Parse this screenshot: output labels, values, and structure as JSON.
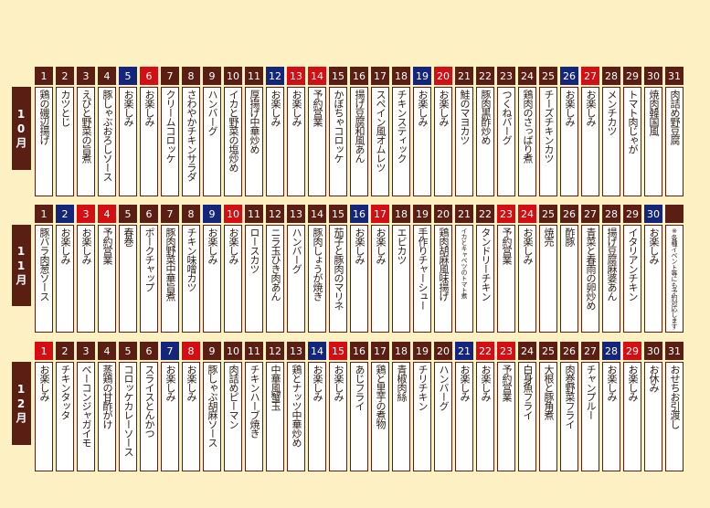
{
  "months": [
    {
      "label": "10月",
      "days": [
        {
          "n": "1",
          "t": "w"
        },
        {
          "n": "2",
          "t": "w"
        },
        {
          "n": "3",
          "t": "w"
        },
        {
          "n": "4",
          "t": "w"
        },
        {
          "n": "5",
          "t": "s"
        },
        {
          "n": "6",
          "t": "u"
        },
        {
          "n": "7",
          "t": "w"
        },
        {
          "n": "8",
          "t": "w"
        },
        {
          "n": "9",
          "t": "w"
        },
        {
          "n": "10",
          "t": "w"
        },
        {
          "n": "11",
          "t": "w"
        },
        {
          "n": "12",
          "t": "s"
        },
        {
          "n": "13",
          "t": "u"
        },
        {
          "n": "14",
          "t": "u"
        },
        {
          "n": "15",
          "t": "w"
        },
        {
          "n": "16",
          "t": "w"
        },
        {
          "n": "17",
          "t": "w"
        },
        {
          "n": "18",
          "t": "w"
        },
        {
          "n": "19",
          "t": "s"
        },
        {
          "n": "20",
          "t": "u"
        },
        {
          "n": "21",
          "t": "w"
        },
        {
          "n": "22",
          "t": "w"
        },
        {
          "n": "23",
          "t": "w"
        },
        {
          "n": "24",
          "t": "w"
        },
        {
          "n": "25",
          "t": "w"
        },
        {
          "n": "26",
          "t": "s"
        },
        {
          "n": "27",
          "t": "u"
        },
        {
          "n": "28",
          "t": "w"
        },
        {
          "n": "29",
          "t": "w"
        },
        {
          "n": "30",
          "t": "w"
        },
        {
          "n": "31",
          "t": "w"
        }
      ],
      "menus": [
        "鶏の磯辺揚げ",
        "カツとじ",
        "えびと野菜の旨煮",
        "豚しゃぶおろしソース",
        "お楽しみ",
        "お楽しみ",
        "クリームコロッケ",
        "さわやかチキンサラダ",
        "ハンバーグ",
        "イカと野菜の塩炒め",
        "厚揚げ中華炒め",
        "お楽しみ",
        "お楽しみ",
        "予約営業",
        "かぼちゃコロッケ",
        "揚げ豆腐和風あん",
        "スペイン風オムレツ",
        "チキンスティック",
        "お楽しみ",
        "お楽しみ",
        "鮭のマヨカツ",
        "豚肉黒酢炒め",
        "つくねバーグ",
        "鶏肉のさっぱり煮",
        "チーズチキンカツ",
        "お楽しみ",
        "お楽しみ",
        "メンチカツ",
        "トマト肉じゃが",
        "焼肉韓国風",
        "肉詰め野豆腐"
      ]
    },
    {
      "label": "11月",
      "days": [
        {
          "n": "1",
          "t": "w"
        },
        {
          "n": "2",
          "t": "s"
        },
        {
          "n": "3",
          "t": "u"
        },
        {
          "n": "4",
          "t": "u"
        },
        {
          "n": "5",
          "t": "w"
        },
        {
          "n": "6",
          "t": "w"
        },
        {
          "n": "7",
          "t": "w"
        },
        {
          "n": "8",
          "t": "w"
        },
        {
          "n": "9",
          "t": "s"
        },
        {
          "n": "10",
          "t": "u"
        },
        {
          "n": "11",
          "t": "w"
        },
        {
          "n": "12",
          "t": "w"
        },
        {
          "n": "13",
          "t": "w"
        },
        {
          "n": "14",
          "t": "w"
        },
        {
          "n": "15",
          "t": "w"
        },
        {
          "n": "16",
          "t": "s"
        },
        {
          "n": "17",
          "t": "u"
        },
        {
          "n": "18",
          "t": "w"
        },
        {
          "n": "19",
          "t": "w"
        },
        {
          "n": "20",
          "t": "w"
        },
        {
          "n": "21",
          "t": "w"
        },
        {
          "n": "22",
          "t": "w"
        },
        {
          "n": "23",
          "t": "u"
        },
        {
          "n": "24",
          "t": "u"
        },
        {
          "n": "25",
          "t": "w"
        },
        {
          "n": "26",
          "t": "w"
        },
        {
          "n": "27",
          "t": "w"
        },
        {
          "n": "28",
          "t": "w"
        },
        {
          "n": "29",
          "t": "w"
        },
        {
          "n": "30",
          "t": "s"
        },
        {
          "n": "",
          "t": "w"
        }
      ],
      "menus": [
        "豚バラ肉葱ソース",
        "お楽しみ",
        "お楽しみ",
        "予約営業",
        "春巻",
        "ポークチャップ",
        "豚肉野菜中華旨煮",
        "チキン味噌カツ",
        "お楽しみ",
        "お楽しみ",
        "ロースカツ",
        "ニラ玉ひき肉あん",
        "ハンバーグ",
        "豚肉しょうが焼き",
        "茄子と豚肉のマリネ",
        "お楽しみ",
        "お楽しみ",
        "エビカツ",
        "手作りチャーシュー",
        "鶏肉胡麻風味揚げ",
        "イカとキャベツのトマト煮",
        "タンドリーチキン",
        "予約営業",
        "お楽しみ",
        "焼売",
        "酢豚",
        "青菜と春雨の卵炒め",
        "揚げ豆腐麻婆あん",
        "イタリアンチキン",
        "お楽しみ",
        "※各種イベント等にも予約対応します"
      ]
    },
    {
      "label": "12月",
      "days": [
        {
          "n": "1",
          "t": "u"
        },
        {
          "n": "2",
          "t": "w"
        },
        {
          "n": "3",
          "t": "w"
        },
        {
          "n": "4",
          "t": "w"
        },
        {
          "n": "5",
          "t": "w"
        },
        {
          "n": "6",
          "t": "w"
        },
        {
          "n": "7",
          "t": "s"
        },
        {
          "n": "8",
          "t": "u"
        },
        {
          "n": "9",
          "t": "w"
        },
        {
          "n": "10",
          "t": "w"
        },
        {
          "n": "11",
          "t": "w"
        },
        {
          "n": "12",
          "t": "w"
        },
        {
          "n": "13",
          "t": "w"
        },
        {
          "n": "14",
          "t": "s"
        },
        {
          "n": "15",
          "t": "u"
        },
        {
          "n": "16",
          "t": "w"
        },
        {
          "n": "17",
          "t": "w"
        },
        {
          "n": "18",
          "t": "w"
        },
        {
          "n": "19",
          "t": "w"
        },
        {
          "n": "20",
          "t": "w"
        },
        {
          "n": "21",
          "t": "s"
        },
        {
          "n": "22",
          "t": "u"
        },
        {
          "n": "23",
          "t": "u"
        },
        {
          "n": "24",
          "t": "w"
        },
        {
          "n": "25",
          "t": "w"
        },
        {
          "n": "26",
          "t": "w"
        },
        {
          "n": "27",
          "t": "w"
        },
        {
          "n": "28",
          "t": "s"
        },
        {
          "n": "29",
          "t": "u"
        },
        {
          "n": "30",
          "t": "w"
        },
        {
          "n": "31",
          "t": "w"
        }
      ],
      "menus": [
        "お楽しみ",
        "チキンタッタ",
        "ベーコンジャガイモ",
        "蒸鶏の甘酢がけ",
        "コロッケカレーソース",
        "スライスとんかつ",
        "お楽しみ",
        "お楽しみ",
        "豚しゃぶ胡麻ソース",
        "肉詰めピーマン",
        "チキンハーブ焼き",
        "中華風蟹玉",
        "鶏とナッツ中華炒め",
        "お楽しみ",
        "お楽しみ",
        "あじフライ",
        "鶏と里芋の煮物",
        "青椒肉絲",
        "チリチキン",
        "ハンバーグ",
        "お楽しみ",
        "お楽しみ",
        "予約営業",
        "白身魚フライ",
        "大根と豚角煮",
        "肉巻野菜フライ",
        "チャンプルー",
        "お楽しみ",
        "お楽しみ",
        "お休み",
        "おせちお引渡し"
      ]
    }
  ],
  "colors": {
    "weekday": "#5a1e12",
    "saturday": "#14267a",
    "sunday": "#d40f14"
  }
}
